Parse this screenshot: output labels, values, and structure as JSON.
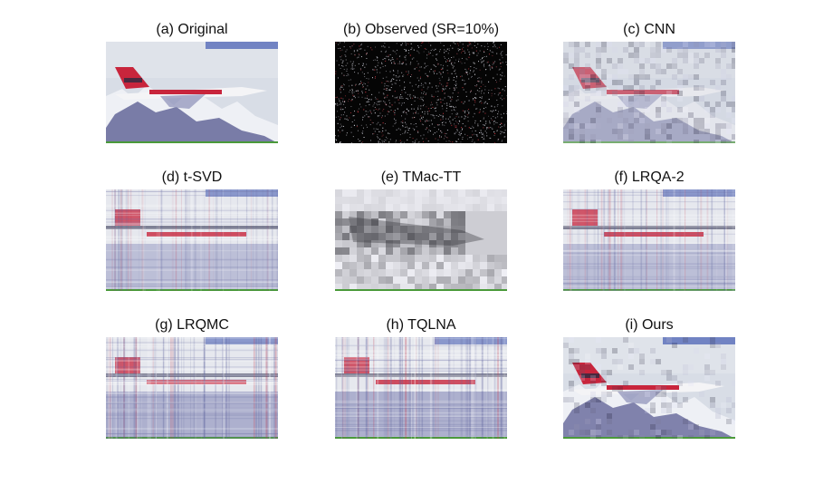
{
  "figure": {
    "panels": [
      {
        "caption": "(a) Original",
        "style": "original"
      },
      {
        "caption": "(b) Observed (SR=10%)",
        "style": "observed"
      },
      {
        "caption": "(c) CNN",
        "style": "cnn"
      },
      {
        "caption": "(d) t-SVD",
        "style": "streaky"
      },
      {
        "caption": "(e) TMac-TT",
        "style": "blocky-gray"
      },
      {
        "caption": "(f) LRQA-2",
        "style": "streaky"
      },
      {
        "caption": "(g) LRQMC",
        "style": "streaky-heavy"
      },
      {
        "caption": "(h) TQLNA",
        "style": "streaky-heavy"
      },
      {
        "caption": "(i) Ours",
        "style": "good"
      }
    ],
    "colors": {
      "sky": "#d8dde6",
      "snow": "#eef0f5",
      "mountain": "#6c6f9f",
      "jet_red": "#c8253c",
      "jet_white": "#f4f4f6",
      "observed_bg": "#050505",
      "ground_line": "#4a9a3a"
    }
  }
}
